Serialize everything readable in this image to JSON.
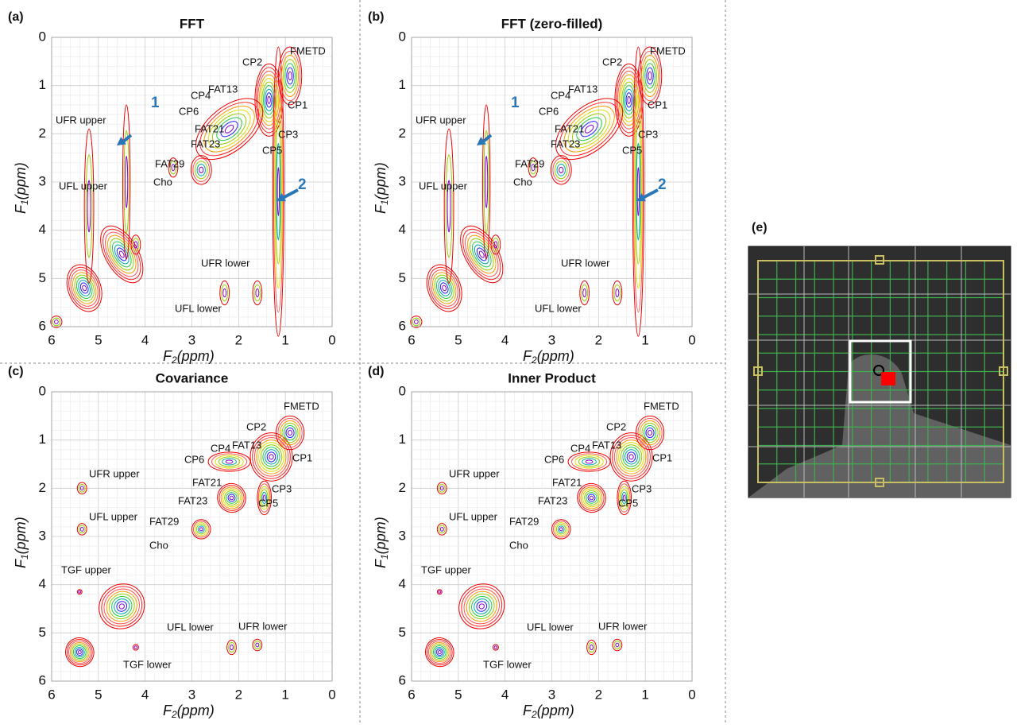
{
  "axes": {
    "xlabel": {
      "symbol": "F",
      "subscript": "2",
      "unit": "(ppm)"
    },
    "ylabel": {
      "symbol": "F",
      "subscript": "1",
      "unit": "(ppm)"
    },
    "xticks": [
      "6",
      "5",
      "4",
      "3",
      "2",
      "1",
      "0"
    ],
    "yticks": [
      "0",
      "1",
      "2",
      "3",
      "4",
      "5",
      "6"
    ]
  },
  "panels": [
    {
      "label": "(a)",
      "title": "FFT",
      "annotations": [
        "FMETD",
        "CP2",
        "FAT13",
        "CP4",
        "CP6",
        "CP1",
        "FAT21",
        "CP3",
        "FAT23",
        "CP5",
        "FAT29",
        "Cho",
        "UFR upper",
        "UFL upper",
        "UFR lower",
        "UFL lower"
      ],
      "arrows": [
        "1",
        "2"
      ]
    },
    {
      "label": "(b)",
      "title": "FFT (zero-filled)",
      "annotations": [
        "FMETD",
        "CP2",
        "FAT13",
        "CP4",
        "CP6",
        "CP1",
        "FAT21",
        "CP3",
        "FAT23",
        "CP5",
        "FAT29",
        "Cho",
        "UFR upper",
        "UFL upper",
        "UFR lower",
        "UFL lower"
      ],
      "arrows": [
        "1",
        "2"
      ]
    },
    {
      "label": "(c)",
      "title": "Covariance",
      "annotations": [
        "FMETD",
        "CP2",
        "CP4",
        "FAT13",
        "CP6",
        "CP1",
        "UFR upper",
        "FAT21",
        "CP3",
        "FAT23",
        "CP5",
        "UFL upper",
        "FAT29",
        "Cho",
        "TGF upper",
        "UFL lower",
        "UFR lower",
        "TGF lower"
      ],
      "arrows": []
    },
    {
      "label": "(d)",
      "title": "Inner Product",
      "annotations": [
        "FMETD",
        "CP2",
        "CP4",
        "FAT13",
        "CP6",
        "CP1",
        "UFR upper",
        "FAT21",
        "CP3",
        "FAT23",
        "CP5",
        "UFL upper",
        "FAT29",
        "Cho",
        "TGF upper",
        "UFL lower",
        "UFR lower",
        "TGF lower"
      ],
      "arrows": []
    }
  ],
  "inset": {
    "label": "(e)"
  }
}
